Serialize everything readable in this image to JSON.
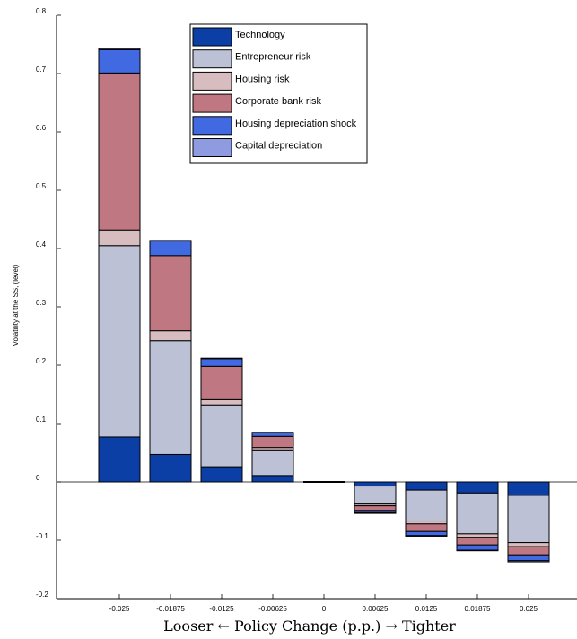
{
  "chart_data": {
    "type": "bar",
    "stacked": true,
    "categories": [
      "-0.025",
      "-0.01875",
      "-0.0125",
      "-0.00625",
      "0",
      "0.00625",
      "0.0125",
      "0.01875",
      "0.025"
    ],
    "xlabel": "Looser ← Policy Change (p.p.) → Tighter",
    "ylabel": "Volatility at the SS, (level)",
    "ylim": [
      -0.2,
      0.8
    ],
    "yticks": [
      -0.2,
      -0.1,
      0,
      0.1,
      0.2,
      0.3,
      0.4,
      0.5,
      0.6,
      0.7,
      0.8
    ],
    "ytick_labels": [
      "-0.2",
      "-0.1",
      "0",
      "0.1",
      "0.2",
      "0.3",
      "0.4",
      "0.5",
      "0.6",
      "0.7",
      "0.8"
    ],
    "legend_position": "top-center",
    "series": [
      {
        "name": "Technology",
        "color": "#0b3fa6",
        "values": [
          0.077,
          0.047,
          0.026,
          0.011,
          0.0,
          -0.007,
          -0.014,
          -0.019,
          -0.023
        ]
      },
      {
        "name": "Entrepreneur risk",
        "color": "#bdc1d6",
        "values": [
          0.328,
          0.195,
          0.106,
          0.044,
          0.0,
          -0.031,
          -0.053,
          -0.07,
          -0.081
        ]
      },
      {
        "name": "Housing risk",
        "color": "#d7bcc0",
        "values": [
          0.027,
          0.017,
          0.009,
          0.004,
          0.0,
          -0.003,
          -0.005,
          -0.006,
          -0.007
        ]
      },
      {
        "name": "Corporate bank risk",
        "color": "#bf7882",
        "values": [
          0.269,
          0.129,
          0.057,
          0.019,
          0.0,
          -0.008,
          -0.013,
          -0.013,
          -0.014
        ]
      },
      {
        "name": "Housing depreciation shock",
        "color": "#4169e1",
        "values": [
          0.04,
          0.025,
          0.013,
          0.006,
          0.0,
          -0.004,
          -0.007,
          -0.009,
          -0.01
        ]
      },
      {
        "name": "Capital depreciation",
        "color": "#8f9be0",
        "values": [
          0.002,
          0.001,
          0.001,
          0.001,
          0.0,
          -0.001,
          -0.001,
          -0.001,
          -0.002
        ]
      }
    ],
    "grid": false
  }
}
